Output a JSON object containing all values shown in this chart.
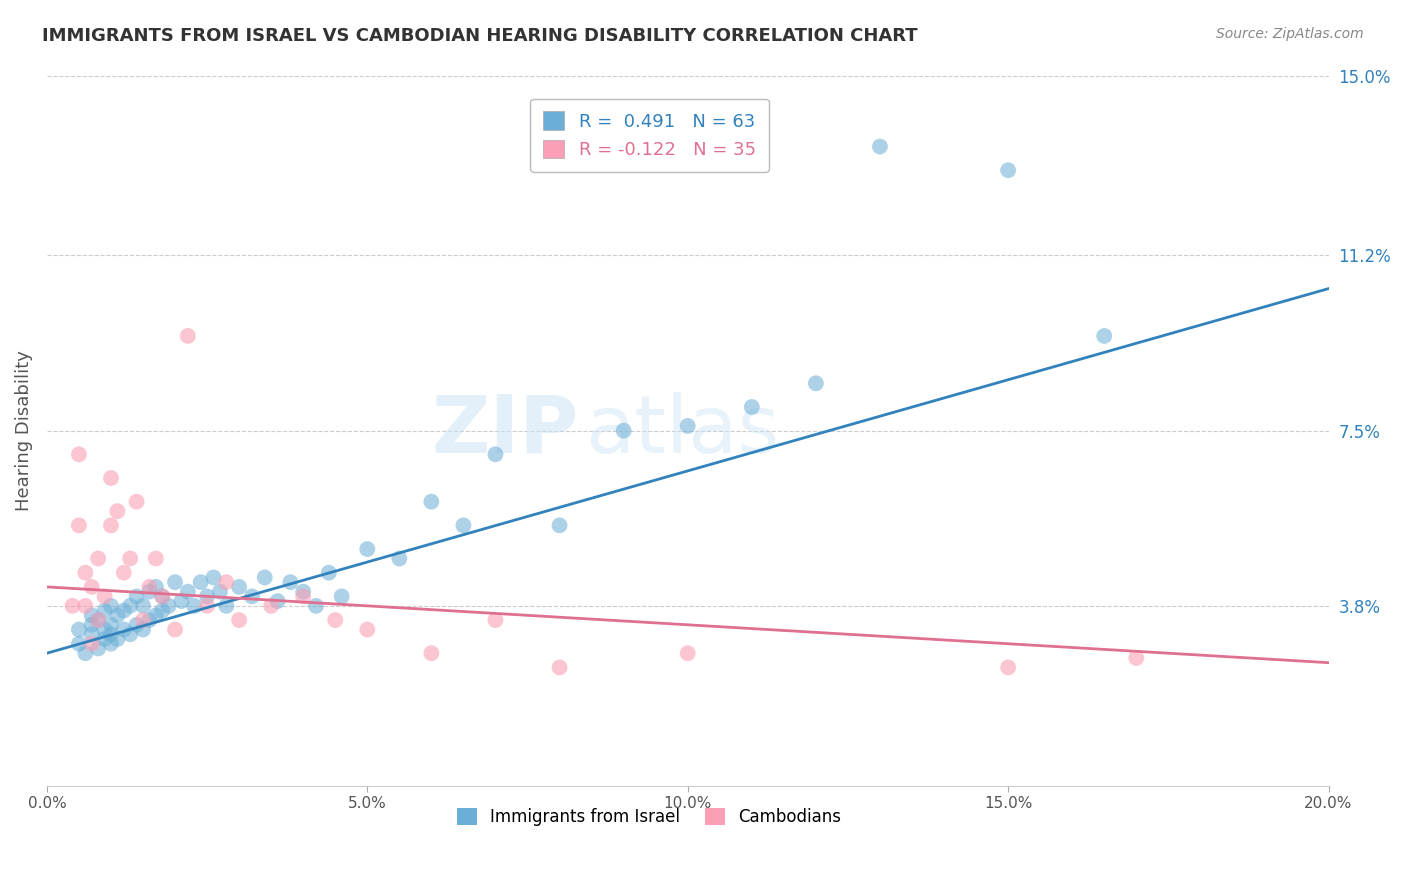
{
  "title": "IMMIGRANTS FROM ISRAEL VS CAMBODIAN HEARING DISABILITY CORRELATION CHART",
  "source": "Source: ZipAtlas.com",
  "xlabel": "",
  "ylabel": "Hearing Disability",
  "xlim": [
    0.0,
    0.2
  ],
  "ylim": [
    0.0,
    0.15
  ],
  "yticks": [
    0.038,
    0.075,
    0.112,
    0.15
  ],
  "ytick_labels": [
    "3.8%",
    "7.5%",
    "11.2%",
    "15.0%"
  ],
  "xticks": [
    0.0,
    0.05,
    0.1,
    0.15,
    0.2
  ],
  "xtick_labels": [
    "0.0%",
    "5.0%",
    "10.0%",
    "15.0%",
    "20.0%"
  ],
  "blue_label": "Immigrants from Israel",
  "pink_label": "Cambodians",
  "blue_R": "0.491",
  "blue_N": "63",
  "pink_R": "-0.122",
  "pink_N": "35",
  "blue_color": "#6baed6",
  "pink_color": "#fa9fb5",
  "blue_line_color": "#3182bd",
  "pink_line_color": "#e07090",
  "watermark_zip": "ZIP",
  "watermark_atlas": "atlas",
  "background_color": "#ffffff",
  "grid_color": "#cccccc",
  "blue_scatter_x": [
    0.005,
    0.005,
    0.006,
    0.007,
    0.007,
    0.007,
    0.008,
    0.008,
    0.009,
    0.009,
    0.009,
    0.01,
    0.01,
    0.01,
    0.01,
    0.011,
    0.011,
    0.012,
    0.012,
    0.013,
    0.013,
    0.014,
    0.014,
    0.015,
    0.015,
    0.016,
    0.016,
    0.017,
    0.017,
    0.018,
    0.018,
    0.019,
    0.02,
    0.021,
    0.022,
    0.023,
    0.024,
    0.025,
    0.026,
    0.027,
    0.028,
    0.03,
    0.032,
    0.034,
    0.036,
    0.038,
    0.04,
    0.042,
    0.044,
    0.046,
    0.05,
    0.055,
    0.06,
    0.065,
    0.07,
    0.08,
    0.09,
    0.1,
    0.11,
    0.12,
    0.13,
    0.15,
    0.165
  ],
  "blue_scatter_y": [
    0.03,
    0.033,
    0.028,
    0.032,
    0.034,
    0.036,
    0.029,
    0.035,
    0.031,
    0.033,
    0.037,
    0.03,
    0.032,
    0.034,
    0.038,
    0.031,
    0.036,
    0.033,
    0.037,
    0.032,
    0.038,
    0.034,
    0.04,
    0.033,
    0.038,
    0.035,
    0.041,
    0.036,
    0.042,
    0.037,
    0.04,
    0.038,
    0.043,
    0.039,
    0.041,
    0.038,
    0.043,
    0.04,
    0.044,
    0.041,
    0.038,
    0.042,
    0.04,
    0.044,
    0.039,
    0.043,
    0.041,
    0.038,
    0.045,
    0.04,
    0.05,
    0.048,
    0.06,
    0.055,
    0.07,
    0.055,
    0.075,
    0.076,
    0.08,
    0.085,
    0.135,
    0.13,
    0.095
  ],
  "pink_scatter_x": [
    0.004,
    0.005,
    0.005,
    0.006,
    0.006,
    0.007,
    0.007,
    0.008,
    0.008,
    0.009,
    0.01,
    0.01,
    0.011,
    0.012,
    0.013,
    0.014,
    0.015,
    0.016,
    0.017,
    0.018,
    0.02,
    0.022,
    0.025,
    0.028,
    0.03,
    0.035,
    0.04,
    0.045,
    0.05,
    0.06,
    0.07,
    0.08,
    0.1,
    0.15,
    0.17
  ],
  "pink_scatter_y": [
    0.038,
    0.07,
    0.055,
    0.038,
    0.045,
    0.03,
    0.042,
    0.035,
    0.048,
    0.04,
    0.055,
    0.065,
    0.058,
    0.045,
    0.048,
    0.06,
    0.035,
    0.042,
    0.048,
    0.04,
    0.033,
    0.095,
    0.038,
    0.043,
    0.035,
    0.038,
    0.04,
    0.035,
    0.033,
    0.028,
    0.035,
    0.025,
    0.028,
    0.025,
    0.027
  ],
  "blue_line_x0": 0.0,
  "blue_line_x1": 0.2,
  "blue_line_y0": 0.028,
  "blue_line_y1": 0.105,
  "pink_line_x0": 0.0,
  "pink_line_x1": 0.2,
  "pink_line_y0": 0.042,
  "pink_line_y1": 0.026
}
